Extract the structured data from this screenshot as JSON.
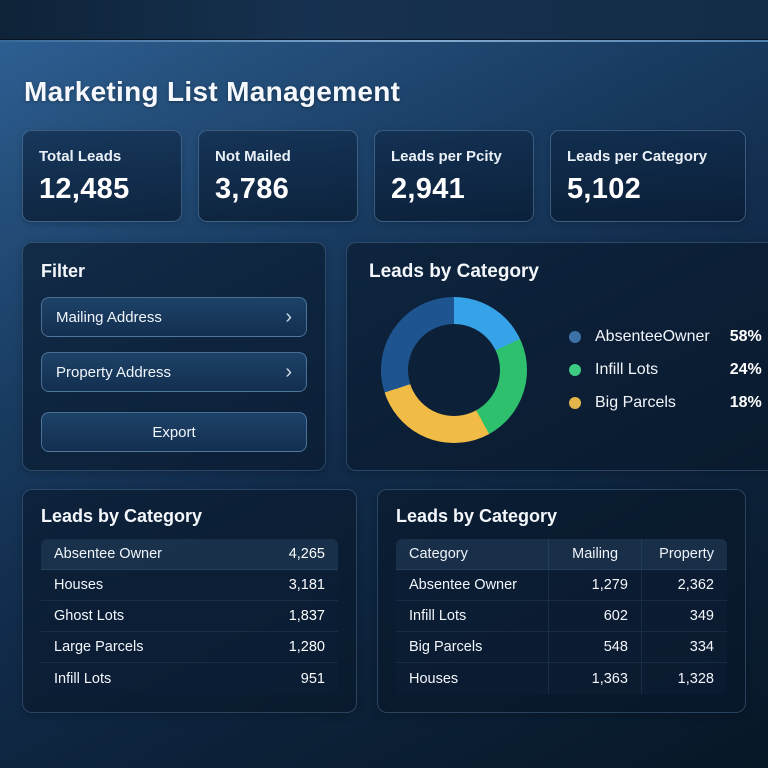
{
  "header": {
    "title": "Marketing List Management"
  },
  "stats": [
    {
      "label": "Total Leads",
      "value": "12,485"
    },
    {
      "label": "Not Mailed",
      "value": "3,786"
    },
    {
      "label": "Leads per Pcity",
      "value": "2,941"
    },
    {
      "label": "Leads per Category",
      "value": "5,102"
    }
  ],
  "filter": {
    "title": "Filter",
    "chevron": "›",
    "items": [
      {
        "label": "Mailing Address"
      },
      {
        "label": "Property Address"
      }
    ],
    "export_label": "Export"
  },
  "colors": {
    "accent_blue": "#36a3e8",
    "accent_green": "#2fc06d",
    "accent_yellow": "#f0bc45",
    "accent_darkblue": "#1e5591"
  },
  "chart_data": [
    {
      "type": "pie",
      "title": "Leads by Category",
      "labels": [
        "AbsenteeOwner",
        "Infill Lots",
        "Big Parcels"
      ],
      "values": [
        58,
        24,
        18
      ],
      "legend": [
        {
          "label": "AbsenteeOwner",
          "pct": "58%",
          "color": "#3c72a8"
        },
        {
          "label": "Infill Lots",
          "pct": "24%",
          "color": "#3dcb82"
        },
        {
          "label": "Big Parcels",
          "pct": "18%",
          "color": "#e3b54a"
        }
      ],
      "segments": [
        {
          "color": "#36a3e8",
          "from": 0,
          "to": 18
        },
        {
          "color": "#2fc06d",
          "from": 18,
          "to": 42
        },
        {
          "color": "#f0bc45",
          "from": 42,
          "to": 70
        },
        {
          "color": "#1e5591",
          "from": 70,
          "to": 100
        }
      ],
      "legend_position": "right"
    },
    {
      "type": "table",
      "title": "Leads by Category",
      "rows": [
        {
          "label": "Absentee Owner",
          "value": "4,265"
        },
        {
          "label": "Houses",
          "value": "3,181"
        },
        {
          "label": "Ghost Lots",
          "value": "1,837"
        },
        {
          "label": "Large Parcels",
          "value": "1,280"
        },
        {
          "label": "Infill Lots",
          "value": "951"
        }
      ]
    },
    {
      "type": "table",
      "title": "Leads by Category",
      "columns": [
        "Category",
        "Mailing",
        "Property"
      ],
      "rows": [
        [
          "Absentee Owner",
          "1,279",
          "2,362"
        ],
        [
          "Infill Lots",
          "602",
          "349"
        ],
        [
          "Big Parcels",
          "548",
          "334"
        ],
        [
          "Houses",
          "1,363",
          "1,328"
        ]
      ]
    }
  ]
}
